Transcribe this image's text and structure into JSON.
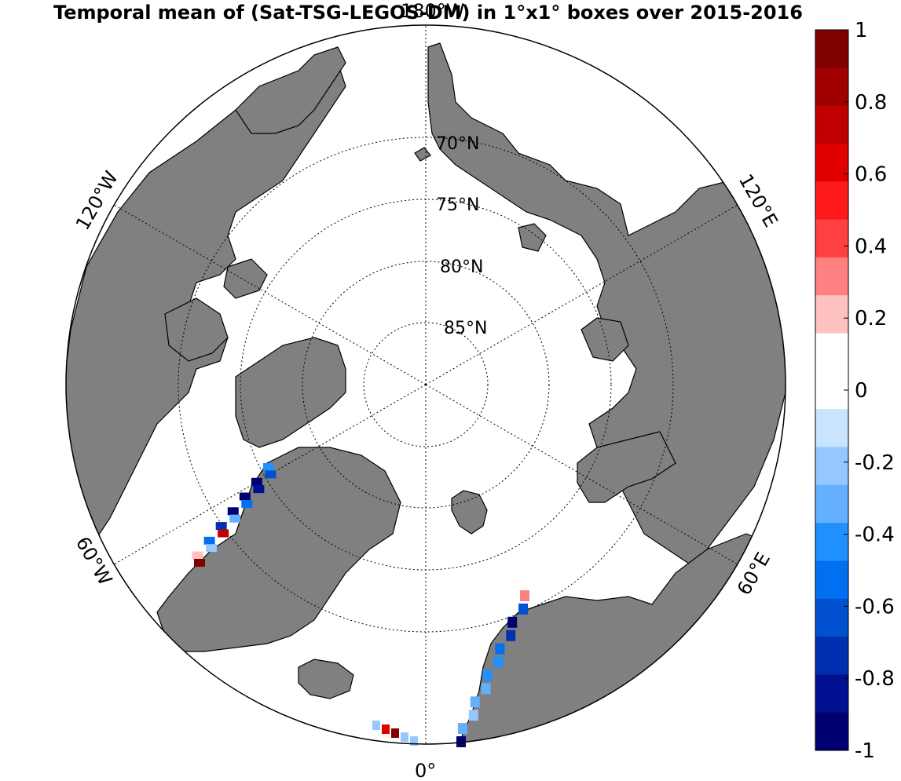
{
  "title": "Temporal mean of (Sat-TSG-LEGOS-DM) in 1°x1° boxes over 2015-2016",
  "colors": {
    "land": "#808080",
    "ocean": "#ffffff",
    "outline": "#000000"
  },
  "lat_labels": [
    {
      "id": "70",
      "text": "70°N"
    },
    {
      "id": "75",
      "text": "75°N"
    },
    {
      "id": "80",
      "text": "80°N"
    },
    {
      "id": "85",
      "text": "85°N"
    }
  ],
  "lon_labels": {
    "top": "180°W",
    "w120": "120°W",
    "e120": "120°E",
    "w60": "60°W",
    "e60": "60°E",
    "bottom": "0°"
  },
  "colorbar": {
    "min": -1,
    "max": 1,
    "tick_labels": [
      "1",
      "0.8",
      "0.6",
      "0.4",
      "0.2",
      "0",
      "-0.2",
      "-0.4",
      "-0.6",
      "-0.8",
      "-1"
    ],
    "colors": [
      "#800000",
      "#a00000",
      "#c00000",
      "#e00000",
      "#ff1a1a",
      "#ff4040",
      "#ff8080",
      "#ffc0c0",
      "#ffffff",
      "#ffffff",
      "#c8e4ff",
      "#96c8ff",
      "#64b0ff",
      "#2090ff",
      "#0070f0",
      "#0050d0",
      "#0030b0",
      "#001090",
      "#000070"
    ]
  },
  "data_segments": [
    {
      "name": "baffin-bay-track",
      "values": [
        -0.4,
        -0.6,
        -1,
        -0.8,
        -0.9,
        -0.5,
        -1,
        -0.3,
        -0.7,
        0.7,
        -0.5,
        -0.2,
        0.2,
        0.9
      ]
    },
    {
      "name": "barents-norway-track",
      "values": [
        0.3,
        -0.6,
        -1,
        -0.7,
        -0.5,
        -0.4,
        -0.4,
        -0.3,
        -0.3,
        -0.2,
        -0.3,
        -1
      ]
    },
    {
      "name": "north-sea-track",
      "values": [
        -0.2,
        0.6,
        0.9,
        -0.2,
        -0.2
      ]
    }
  ]
}
